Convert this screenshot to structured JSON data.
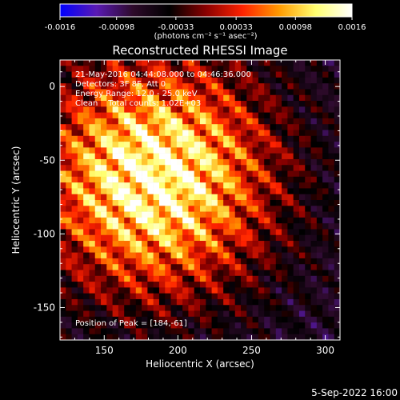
{
  "chart_data": {
    "type": "heatmap",
    "title": "Reconstructed RHESSI Image",
    "xlabel": "Heliocentric X (arcsec)",
    "ylabel": "Heliocentric Y (arcsec)",
    "xlim": [
      120,
      310
    ],
    "ylim": [
      -172,
      18
    ],
    "x_ticks": [
      150,
      200,
      250,
      300
    ],
    "y_ticks": [
      0,
      -50,
      -100,
      -150
    ],
    "colorbar": {
      "label": "(photons cm⁻² s⁻¹ asec⁻²)",
      "range": [
        -0.0016,
        0.0016
      ],
      "ticks": [
        "-0.0016",
        "-0.00098",
        "-0.00033",
        "0.00033",
        "0.00098",
        "0.0016"
      ],
      "tick_values": [
        -0.0016,
        -0.00098,
        -0.00033,
        0.00033,
        0.00098,
        0.0016
      ],
      "colors": [
        "#0000ff",
        "#5a1ab4",
        "#2d0a2a",
        "#000000",
        "#8a0000",
        "#ff2200",
        "#ff9a00",
        "#ffff70",
        "#ffffff"
      ]
    },
    "annotations": [
      "21-May-2016 04:44:08.000 to 04:46:36.000",
      "Detectors: 3F 8F, Att 0",
      "Energy Range: 12.0 - 25.0 keV",
      "Clean    Total counts: 1.02E+03"
    ],
    "peak_label": "Position of Peak = [184,-61]",
    "peak_position": [
      184,
      -61
    ],
    "grid": false
  },
  "footer_date": "5-Sep-2022 16:00"
}
